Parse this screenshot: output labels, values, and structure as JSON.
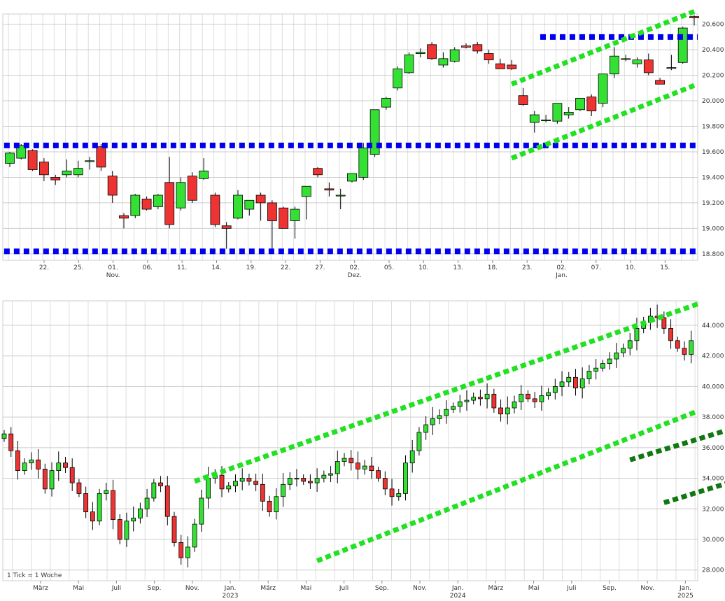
{
  "chart_data": [
    {
      "type": "candlestick",
      "name": "daily-chart",
      "yticks": [
        "20.600",
        "20.400",
        "20.200",
        "20.000",
        "19.800",
        "19.600",
        "19.400",
        "19.200",
        "19.000",
        "18.800"
      ],
      "yrange": [
        18.75,
        20.68
      ],
      "xticks": [
        {
          "label": "22.",
          "sub": ""
        },
        {
          "label": "25.",
          "sub": ""
        },
        {
          "label": "01.",
          "sub": "Nov."
        },
        {
          "label": "06.",
          "sub": ""
        },
        {
          "label": "11.",
          "sub": ""
        },
        {
          "label": "14.",
          "sub": ""
        },
        {
          "label": "19.",
          "sub": ""
        },
        {
          "label": "22.",
          "sub": ""
        },
        {
          "label": "27.",
          "sub": ""
        },
        {
          "label": "02.",
          "sub": "Dez."
        },
        {
          "label": "05.",
          "sub": ""
        },
        {
          "label": "10.",
          "sub": ""
        },
        {
          "label": "13.",
          "sub": ""
        },
        {
          "label": "18.",
          "sub": ""
        },
        {
          "label": "23.",
          "sub": ""
        },
        {
          "label": "02.",
          "sub": "Jan."
        },
        {
          "label": "07.",
          "sub": ""
        },
        {
          "label": "10.",
          "sub": ""
        },
        {
          "label": "15.",
          "sub": ""
        }
      ],
      "candles": [
        {
          "o": 19.51,
          "h": 19.6,
          "l": 19.48,
          "c": 19.59
        },
        {
          "o": 19.55,
          "h": 19.66,
          "l": 19.54,
          "c": 19.65
        },
        {
          "o": 19.61,
          "h": 19.62,
          "l": 19.45,
          "c": 19.46
        },
        {
          "o": 19.52,
          "h": 19.55,
          "l": 19.37,
          "c": 19.42
        },
        {
          "o": 19.4,
          "h": 19.42,
          "l": 19.34,
          "c": 19.38
        },
        {
          "o": 19.42,
          "h": 19.54,
          "l": 19.4,
          "c": 19.45
        },
        {
          "o": 19.42,
          "h": 19.53,
          "l": 19.4,
          "c": 19.47
        },
        {
          "o": 19.53,
          "h": 19.56,
          "l": 19.46,
          "c": 19.53
        },
        {
          "o": 19.64,
          "h": 19.66,
          "l": 19.45,
          "c": 19.48
        },
        {
          "o": 19.41,
          "h": 19.45,
          "l": 19.2,
          "c": 19.26
        },
        {
          "o": 19.1,
          "h": 19.12,
          "l": 19.0,
          "c": 19.08
        },
        {
          "o": 19.1,
          "h": 19.27,
          "l": 19.08,
          "c": 19.26
        },
        {
          "o": 19.23,
          "h": 19.25,
          "l": 19.14,
          "c": 19.15
        },
        {
          "o": 19.17,
          "h": 19.27,
          "l": 19.15,
          "c": 19.26
        },
        {
          "o": 19.36,
          "h": 19.56,
          "l": 19.0,
          "c": 19.03
        },
        {
          "o": 19.16,
          "h": 19.4,
          "l": 19.14,
          "c": 19.36
        },
        {
          "o": 19.41,
          "h": 19.44,
          "l": 19.2,
          "c": 19.22
        },
        {
          "o": 19.39,
          "h": 19.55,
          "l": 19.38,
          "c": 19.45
        },
        {
          "o": 19.26,
          "h": 19.28,
          "l": 19.01,
          "c": 19.03
        },
        {
          "o": 19.02,
          "h": 19.05,
          "l": 18.84,
          "c": 19.0
        },
        {
          "o": 19.08,
          "h": 19.3,
          "l": 19.07,
          "c": 19.26
        },
        {
          "o": 19.15,
          "h": 19.22,
          "l": 19.1,
          "c": 19.22
        },
        {
          "o": 19.26,
          "h": 19.28,
          "l": 19.06,
          "c": 19.2
        },
        {
          "o": 19.2,
          "h": 19.22,
          "l": 18.83,
          "c": 19.06
        },
        {
          "o": 19.16,
          "h": 19.17,
          "l": 19.0,
          "c": 19.0
        },
        {
          "o": 19.06,
          "h": 19.17,
          "l": 18.92,
          "c": 19.15
        },
        {
          "o": 19.25,
          "h": 19.33,
          "l": 19.07,
          "c": 19.33
        },
        {
          "o": 19.47,
          "h": 19.48,
          "l": 19.4,
          "c": 19.42
        },
        {
          "o": 19.31,
          "h": 19.36,
          "l": 19.25,
          "c": 19.3
        },
        {
          "o": 19.26,
          "h": 19.31,
          "l": 19.15,
          "c": 19.26
        },
        {
          "o": 19.37,
          "h": 19.43,
          "l": 19.36,
          "c": 19.43
        },
        {
          "o": 19.4,
          "h": 19.67,
          "l": 19.38,
          "c": 19.63
        },
        {
          "o": 19.58,
          "h": 19.93,
          "l": 19.56,
          "c": 19.93
        },
        {
          "o": 19.95,
          "h": 20.03,
          "l": 19.93,
          "c": 20.02
        },
        {
          "o": 20.1,
          "h": 20.27,
          "l": 20.08,
          "c": 20.25
        },
        {
          "o": 20.22,
          "h": 20.38,
          "l": 20.21,
          "c": 20.36
        },
        {
          "o": 20.37,
          "h": 20.41,
          "l": 20.34,
          "c": 20.38
        },
        {
          "o": 20.44,
          "h": 20.46,
          "l": 20.32,
          "c": 20.33
        },
        {
          "o": 20.28,
          "h": 20.38,
          "l": 20.26,
          "c": 20.33
        },
        {
          "o": 20.31,
          "h": 20.42,
          "l": 20.3,
          "c": 20.4
        },
        {
          "o": 20.43,
          "h": 20.45,
          "l": 20.41,
          "c": 20.42
        },
        {
          "o": 20.44,
          "h": 20.46,
          "l": 20.37,
          "c": 20.39
        },
        {
          "o": 20.37,
          "h": 20.4,
          "l": 20.29,
          "c": 20.32
        },
        {
          "o": 20.29,
          "h": 20.33,
          "l": 20.25,
          "c": 20.25
        },
        {
          "o": 20.28,
          "h": 20.32,
          "l": 20.24,
          "c": 20.25
        },
        {
          "o": 20.04,
          "h": 20.1,
          "l": 19.96,
          "c": 19.97
        },
        {
          "o": 19.83,
          "h": 19.92,
          "l": 19.75,
          "c": 19.89
        },
        {
          "o": 19.85,
          "h": 19.89,
          "l": 19.83,
          "c": 19.85
        },
        {
          "o": 19.84,
          "h": 19.98,
          "l": 19.82,
          "c": 19.98
        },
        {
          "o": 19.89,
          "h": 19.95,
          "l": 19.86,
          "c": 19.91
        },
        {
          "o": 19.93,
          "h": 20.02,
          "l": 19.92,
          "c": 20.02
        },
        {
          "o": 20.03,
          "h": 20.05,
          "l": 19.88,
          "c": 19.92
        },
        {
          "o": 19.98,
          "h": 20.21,
          "l": 19.95,
          "c": 20.21
        },
        {
          "o": 20.21,
          "h": 20.42,
          "l": 20.18,
          "c": 20.35
        },
        {
          "o": 20.33,
          "h": 20.36,
          "l": 20.31,
          "c": 20.33
        },
        {
          "o": 20.29,
          "h": 20.34,
          "l": 20.26,
          "c": 20.32
        },
        {
          "o": 20.32,
          "h": 20.37,
          "l": 20.2,
          "c": 20.22
        },
        {
          "o": 20.16,
          "h": 20.18,
          "l": 20.13,
          "c": 20.13
        },
        {
          "o": 20.26,
          "h": 20.36,
          "l": 20.24,
          "c": 20.26
        },
        {
          "o": 20.3,
          "h": 20.58,
          "l": 20.29,
          "c": 20.57
        },
        {
          "o": 20.66,
          "h": 20.67,
          "l": 20.59,
          "c": 20.65
        }
      ],
      "hlines": [
        {
          "y": 20.5,
          "x0": 47,
          "x1": 60,
          "color": "#0000ee"
        },
        {
          "y": 19.65,
          "x0": 0,
          "x1": 60,
          "color": "#0000ee"
        },
        {
          "y": 18.82,
          "x0": 0,
          "x1": 60,
          "color": "#0000ee"
        }
      ],
      "trendlines": [
        {
          "x0": 44,
          "y0": 20.13,
          "x1": 60,
          "y1": 20.7,
          "color": "#22e022"
        },
        {
          "x0": 44,
          "y0": 19.55,
          "x1": 60,
          "y1": 20.12,
          "color": "#22e022"
        }
      ]
    },
    {
      "type": "candlestick",
      "name": "weekly-chart",
      "yticks": [
        "44.000",
        "42.000",
        "40.000",
        "38.000",
        "36.000",
        "34.000",
        "32.000",
        "30.000",
        "28.000"
      ],
      "yrange": [
        27.3,
        45.6
      ],
      "xticks": [
        {
          "label": "März",
          "sub": ""
        },
        {
          "label": "Mai",
          "sub": ""
        },
        {
          "label": "Juli",
          "sub": ""
        },
        {
          "label": "Sep.",
          "sub": ""
        },
        {
          "label": "Nov.",
          "sub": ""
        },
        {
          "label": "Jan.",
          "sub": "2023"
        },
        {
          "label": "März",
          "sub": ""
        },
        {
          "label": "Mai",
          "sub": ""
        },
        {
          "label": "Juli",
          "sub": ""
        },
        {
          "label": "Sep.",
          "sub": ""
        },
        {
          "label": "Nov.",
          "sub": ""
        },
        {
          "label": "Jan.",
          "sub": "2024"
        },
        {
          "label": "März",
          "sub": ""
        },
        {
          "label": "Mai",
          "sub": ""
        },
        {
          "label": "Juli",
          "sub": ""
        },
        {
          "label": "Sep.",
          "sub": ""
        },
        {
          "label": "Nov.",
          "sub": ""
        },
        {
          "label": "Jan.",
          "sub": "2025"
        }
      ],
      "note": "1 Tick = 1 Woche",
      "anchors": [
        36.9,
        35.8,
        34.5,
        35.0,
        35.2,
        34.6,
        33.3,
        34.5,
        35.0,
        34.7,
        33.7,
        33.0,
        31.8,
        31.2,
        33.0,
        33.2,
        31.3,
        30.0,
        31.2,
        31.4,
        32.0,
        32.7,
        33.7,
        33.5,
        31.5,
        29.8,
        28.8,
        29.5,
        31.0,
        32.7,
        34.0,
        34.2,
        33.3,
        33.5,
        33.8,
        34.0,
        33.8,
        33.6,
        32.5,
        31.8,
        32.8,
        33.6,
        34.0,
        34.0,
        33.8,
        33.7,
        34.0,
        34.2,
        34.3,
        35.1,
        35.3,
        35.0,
        34.6,
        34.8,
        34.5,
        34.0,
        33.3,
        32.8,
        33.0,
        35.0,
        35.8,
        37.0,
        37.5,
        37.9,
        38.1,
        38.5,
        38.7,
        39.0,
        39.1,
        39.3,
        39.2,
        39.5,
        38.6,
        38.2,
        38.6,
        39.0,
        39.5,
        39.2,
        39.0,
        39.4,
        39.6,
        40.0,
        40.3,
        40.6,
        39.9,
        40.5,
        41.0,
        41.2,
        41.5,
        41.8,
        42.2,
        42.5,
        43.0,
        43.8,
        44.2,
        44.6,
        44.5,
        43.8,
        43.0,
        42.5,
        42.1,
        43.0
      ],
      "trendlines": [
        {
          "x0": 28,
          "y0": 33.8,
          "x1": 102,
          "y1": 45.4,
          "color": "#22e022"
        },
        {
          "x0": 46,
          "y0": 28.6,
          "x1": 102,
          "y1": 38.4,
          "color": "#22e022"
        },
        {
          "x0": 92,
          "y0": 35.2,
          "x1": 167,
          "y1": 45.4,
          "color": "#117711"
        },
        {
          "x0": 97,
          "y0": 32.4,
          "x1": 167,
          "y1": 42.0,
          "color": "#117711"
        }
      ]
    }
  ]
}
